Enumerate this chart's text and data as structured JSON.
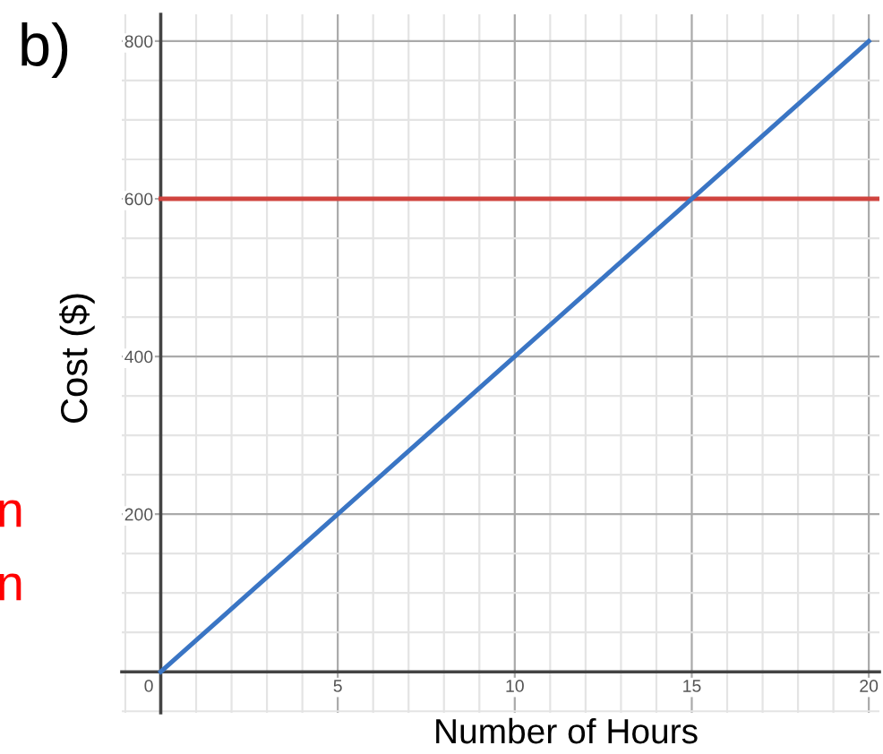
{
  "chart_data": {
    "type": "line",
    "title": "b)",
    "xlabel": "Number of Hours",
    "ylabel": "Cost ($)",
    "annotations": [
      "n",
      "n"
    ],
    "series": [
      {
        "x": [
          0,
          20
        ],
        "values": [
          0,
          800
        ],
        "color": "#3a75c4"
      }
    ],
    "ref_lines": [
      {
        "axis": "y",
        "value": 600,
        "color": "#d0443f"
      }
    ],
    "xlim": [
      -1.1,
      20.3
    ],
    "ylim": [
      -52,
      834
    ],
    "xticks": [
      0,
      5,
      10,
      15,
      20
    ],
    "yticks": [
      {
        "value": 0,
        "label": null
      },
      200,
      400,
      600,
      800
    ],
    "grid": true,
    "line_style": "solid",
    "marker": "none"
  }
}
